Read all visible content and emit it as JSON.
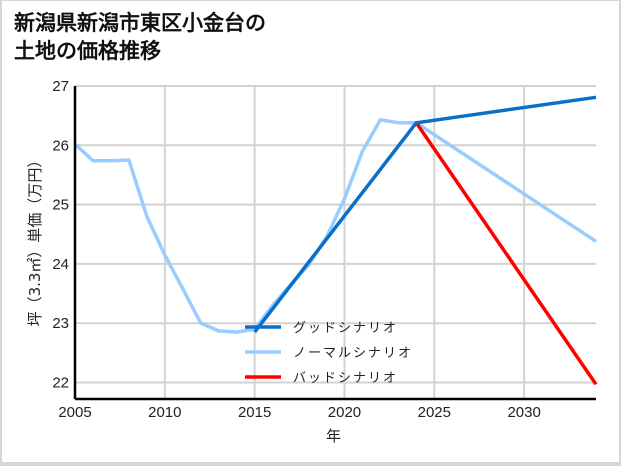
{
  "title_line1": "新潟県新潟市東区小金台の",
  "title_line2": "土地の価格推移",
  "chart_data": {
    "type": "line",
    "title": "新潟県新潟市東区小金台の土地の価格推移",
    "xlabel": "年",
    "ylabel": "坪（3.3㎡）単価（万円）",
    "xlim": [
      2005,
      2034
    ],
    "ylim": [
      21.72,
      27
    ],
    "xticks": [
      2005,
      2010,
      2015,
      2020,
      2025,
      2030
    ],
    "yticks": [
      22,
      23,
      24,
      25,
      26,
      27
    ],
    "grid": true,
    "legend_position": "lower center",
    "series": [
      {
        "name": "グッドシナリオ",
        "color": "#0a6fc9",
        "x": [
          2015,
          2024,
          2034
        ],
        "values": [
          22.85,
          26.38,
          26.81
        ]
      },
      {
        "name": "ノーマルシナリオ",
        "color": "#99ccff",
        "x": [
          2005,
          2006,
          2007,
          2008,
          2009,
          2010,
          2011,
          2012,
          2013,
          2014,
          2015,
          2016,
          2017,
          2018,
          2019,
          2020,
          2021,
          2022,
          2023,
          2024,
          2034
        ],
        "values": [
          26.02,
          25.74,
          25.74,
          25.75,
          24.8,
          24.15,
          23.58,
          23.0,
          22.87,
          22.85,
          22.9,
          23.3,
          23.65,
          23.98,
          24.45,
          25.1,
          25.9,
          26.43,
          26.38,
          26.38,
          24.38
        ]
      },
      {
        "name": "バッドシナリオ",
        "color": "#ff0000",
        "x": [
          2024,
          2034
        ],
        "values": [
          26.38,
          21.97
        ]
      }
    ]
  }
}
